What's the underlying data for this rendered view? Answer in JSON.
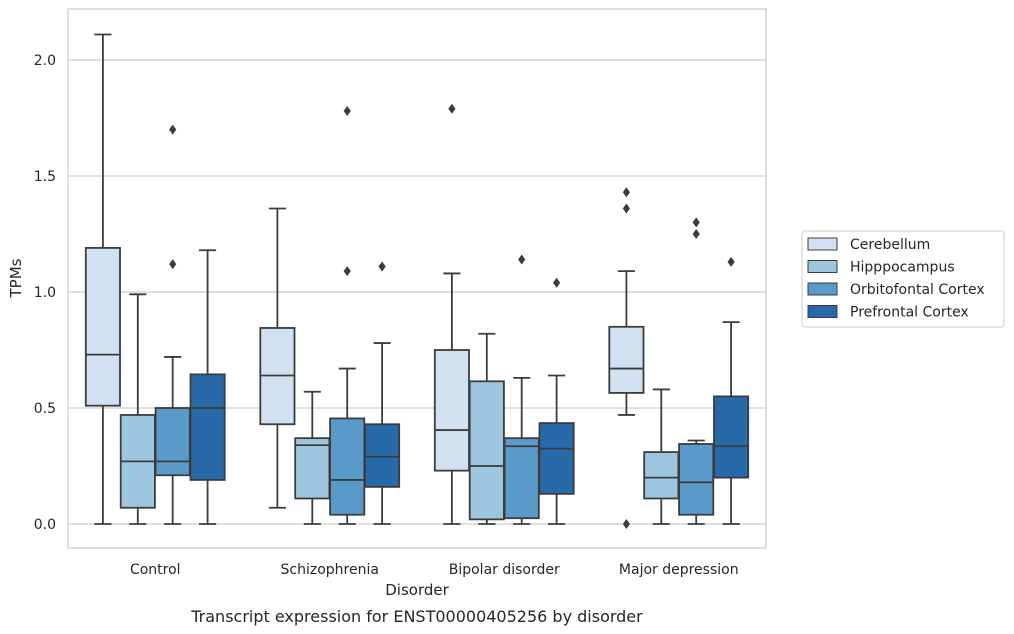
{
  "chart_data": {
    "type": "box",
    "title": "",
    "caption": "Transcript expression for ENST00000405256 by disorder",
    "xlabel": "Disorder",
    "ylabel": "TPMs",
    "ylim": [
      -0.1,
      2.23
    ],
    "yticks": [
      0.0,
      0.5,
      1.0,
      1.5,
      2.0
    ],
    "ytick_labels": [
      "0.0",
      "0.5",
      "1.0",
      "1.5",
      "2.0"
    ],
    "grid": "horizontal",
    "legend_position": "right",
    "categories": [
      "Control",
      "Schizophrenia",
      "Bipolar disorder",
      "Major depression"
    ],
    "series": [
      {
        "name": "Cerebellum",
        "color": "#d1e1f1",
        "boxes": [
          {
            "whisker_low": 0.0,
            "q1": 0.51,
            "median": 0.73,
            "q3": 1.19,
            "whisker_high": 2.11,
            "outliers": []
          },
          {
            "whisker_low": 0.07,
            "q1": 0.43,
            "median": 0.64,
            "q3": 0.845,
            "whisker_high": 1.36,
            "outliers": []
          },
          {
            "whisker_low": 0.0,
            "q1": 0.23,
            "median": 0.405,
            "q3": 0.75,
            "whisker_high": 1.08,
            "outliers": [
              1.79
            ]
          },
          {
            "whisker_low": 0.47,
            "q1": 0.565,
            "median": 0.67,
            "q3": 0.85,
            "whisker_high": 1.09,
            "outliers": [
              1.36,
              1.43,
              0.0
            ]
          }
        ]
      },
      {
        "name": "Hipppocampus",
        "color": "#9dc6de",
        "boxes": [
          {
            "whisker_low": 0.0,
            "q1": 0.07,
            "median": 0.27,
            "q3": 0.47,
            "whisker_high": 0.99,
            "outliers": []
          },
          {
            "whisker_low": 0.0,
            "q1": 0.11,
            "median": 0.34,
            "q3": 0.37,
            "whisker_high": 0.57,
            "outliers": []
          },
          {
            "whisker_low": 0.0,
            "q1": 0.02,
            "median": 0.25,
            "q3": 0.615,
            "whisker_high": 0.82,
            "outliers": []
          },
          {
            "whisker_low": 0.0,
            "q1": 0.11,
            "median": 0.2,
            "q3": 0.31,
            "whisker_high": 0.58,
            "outliers": []
          }
        ]
      },
      {
        "name": "Orbitofontal Cortex",
        "color": "#5a9ac8",
        "boxes": [
          {
            "whisker_low": 0.0,
            "q1": 0.21,
            "median": 0.27,
            "q3": 0.5,
            "whisker_high": 0.72,
            "outliers": [
              1.12,
              1.7
            ]
          },
          {
            "whisker_low": 0.0,
            "q1": 0.04,
            "median": 0.19,
            "q3": 0.455,
            "whisker_high": 0.67,
            "outliers": [
              1.09,
              1.78
            ]
          },
          {
            "whisker_low": 0.0,
            "q1": 0.025,
            "median": 0.335,
            "q3": 0.37,
            "whisker_high": 0.63,
            "outliers": [
              1.14
            ]
          },
          {
            "whisker_low": 0.0,
            "q1": 0.04,
            "median": 0.18,
            "q3": 0.345,
            "whisker_high": 0.36,
            "outliers": [
              1.25,
              1.3
            ]
          }
        ]
      },
      {
        "name": "Prefrontal Cortex",
        "color": "#2869a9",
        "boxes": [
          {
            "whisker_low": 0.0,
            "q1": 0.19,
            "median": 0.5,
            "q3": 0.645,
            "whisker_high": 1.18,
            "outliers": []
          },
          {
            "whisker_low": 0.0,
            "q1": 0.16,
            "median": 0.29,
            "q3": 0.43,
            "whisker_high": 0.78,
            "outliers": [
              1.11
            ]
          },
          {
            "whisker_low": 0.0,
            "q1": 0.13,
            "median": 0.325,
            "q3": 0.435,
            "whisker_high": 0.64,
            "outliers": [
              1.04
            ]
          },
          {
            "whisker_low": 0.0,
            "q1": 0.2,
            "median": 0.335,
            "q3": 0.55,
            "whisker_high": 0.87,
            "outliers": [
              1.13
            ]
          }
        ]
      }
    ]
  }
}
